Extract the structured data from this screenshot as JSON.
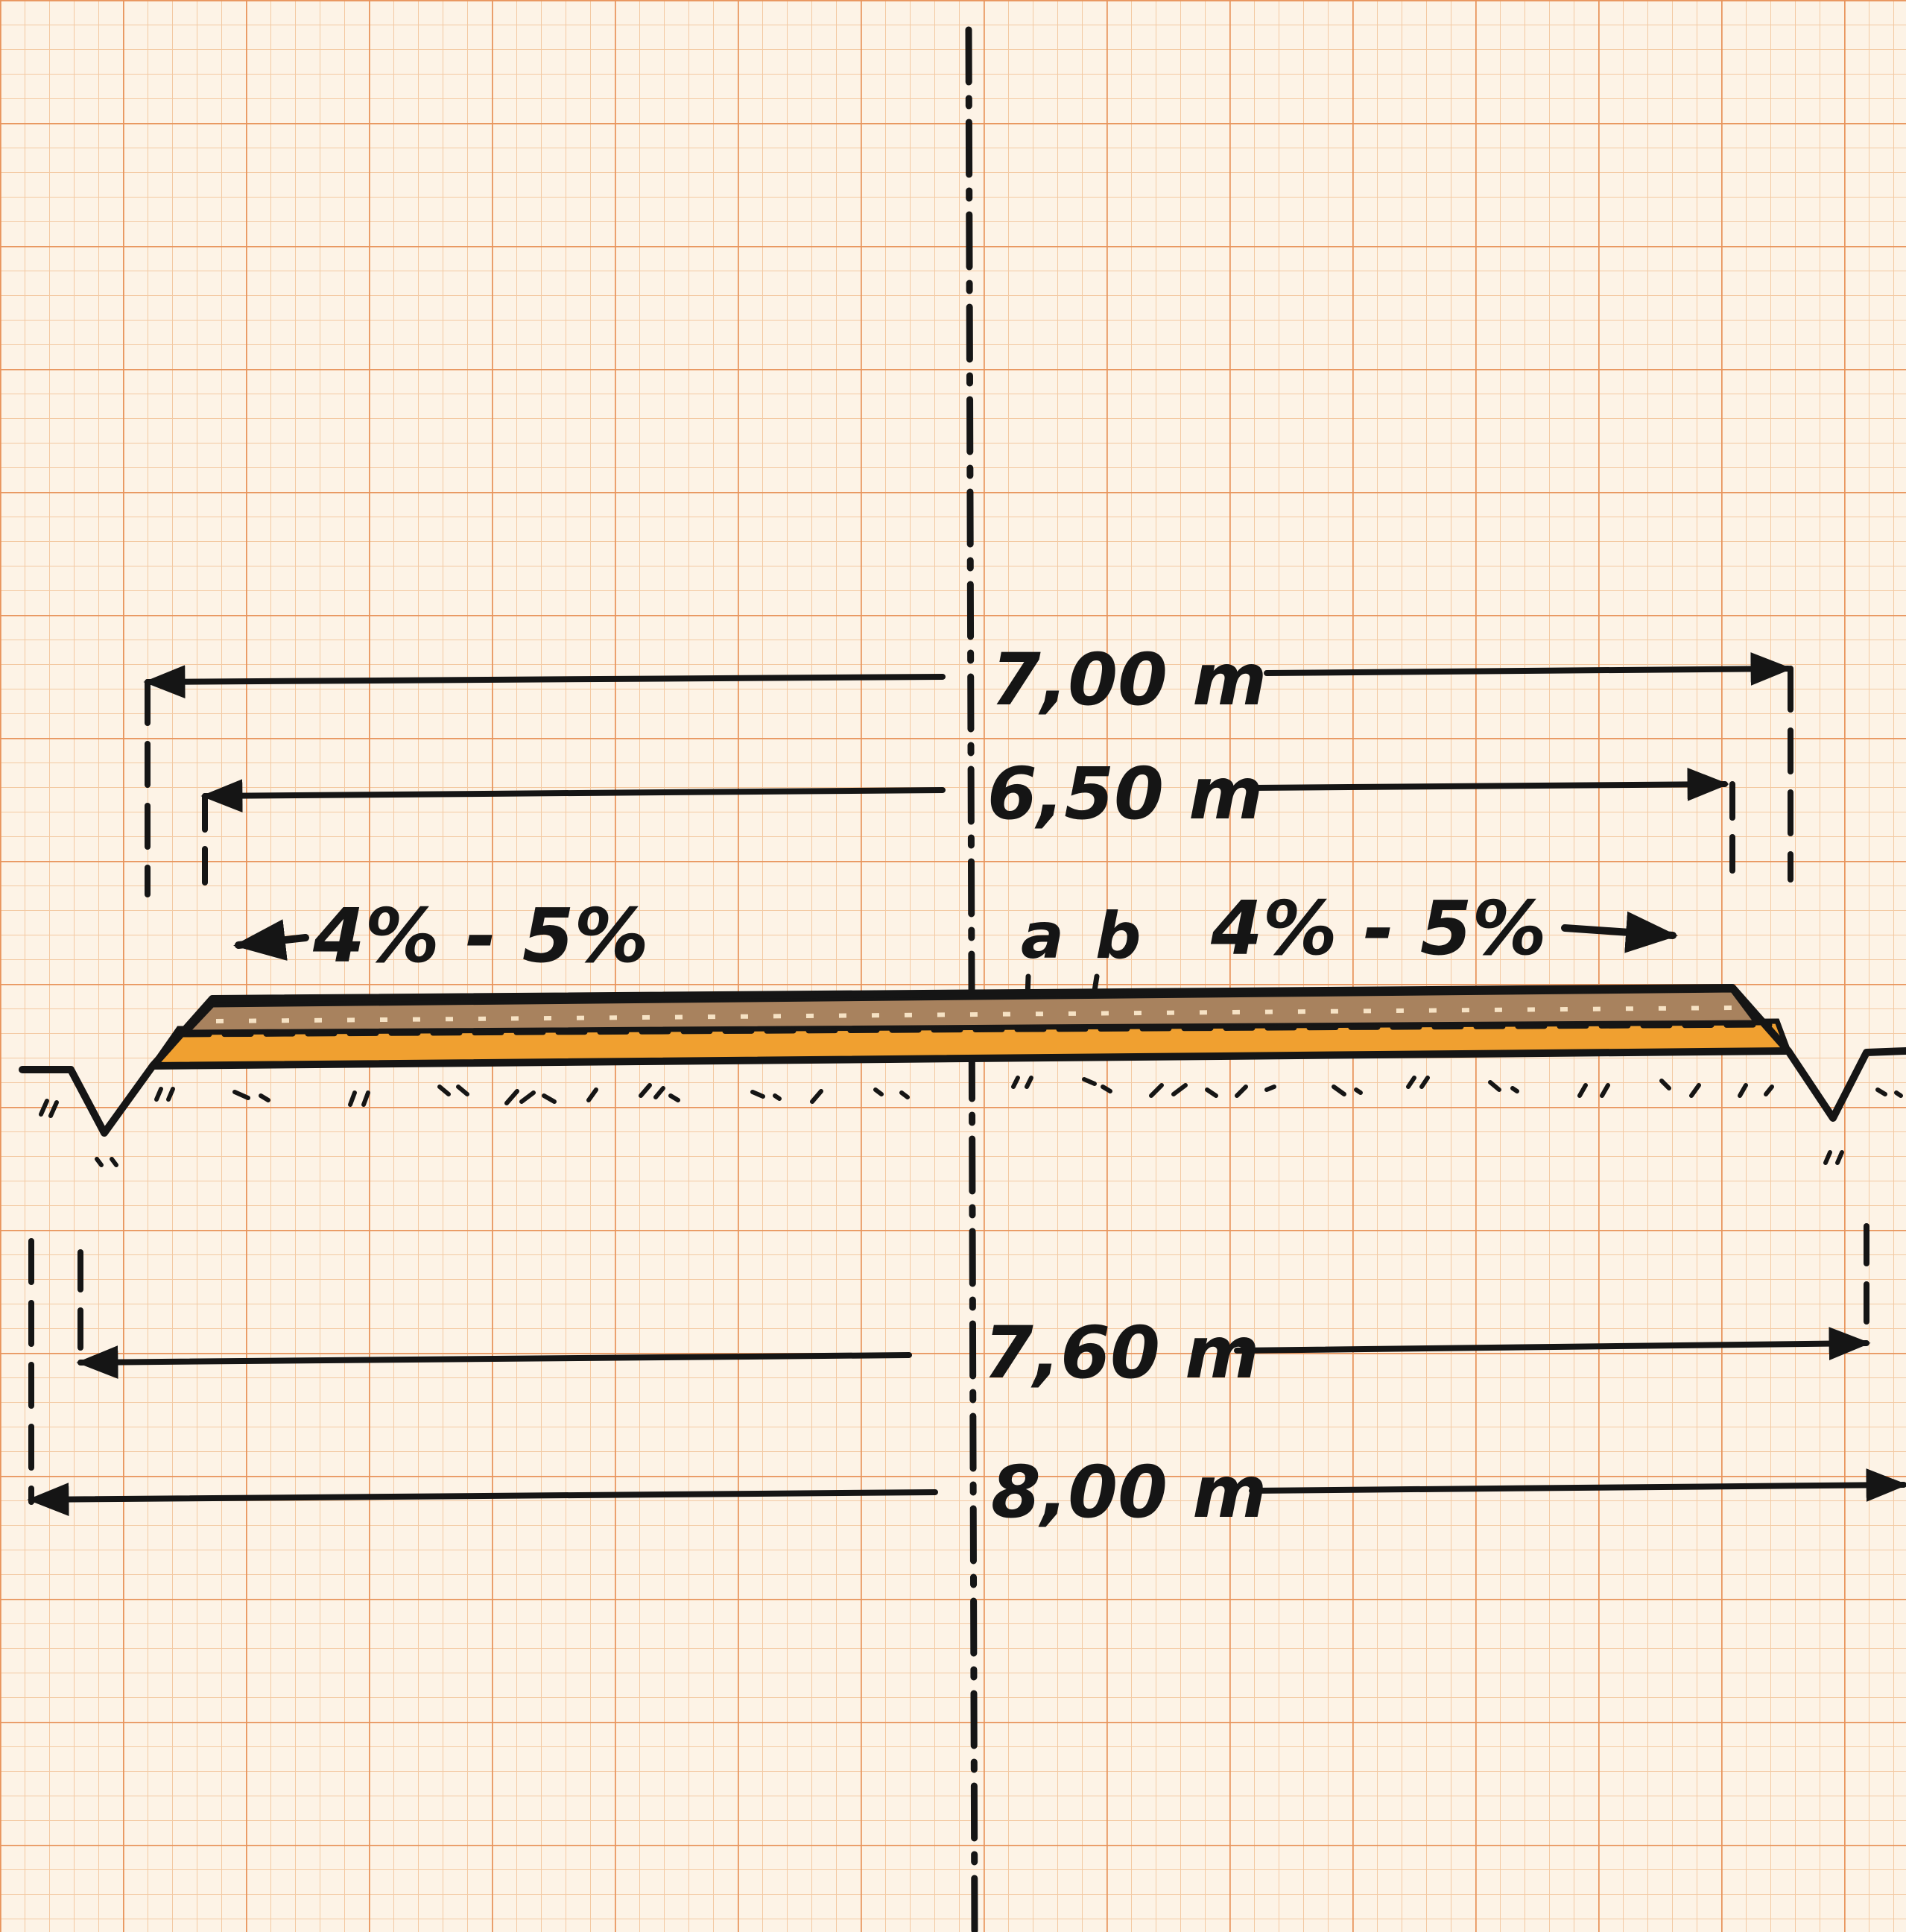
{
  "dimensions": {
    "top_outer": "7,00 m",
    "top_inner": "6,50 m",
    "bottom_inner": "7,60 m",
    "bottom_outer": "8,00 m"
  },
  "slopes": {
    "left": "4% - 5%",
    "right": "4% - 5%"
  },
  "layers": {
    "a": "a",
    "b": "b"
  },
  "colors": {
    "paper": "#fdf3e6",
    "grid_minor": "#f3c9a2",
    "grid_major": "#e8945c",
    "ink": "#151515",
    "surface_layer": "#a8825e",
    "base_layer": "#f0a030"
  }
}
